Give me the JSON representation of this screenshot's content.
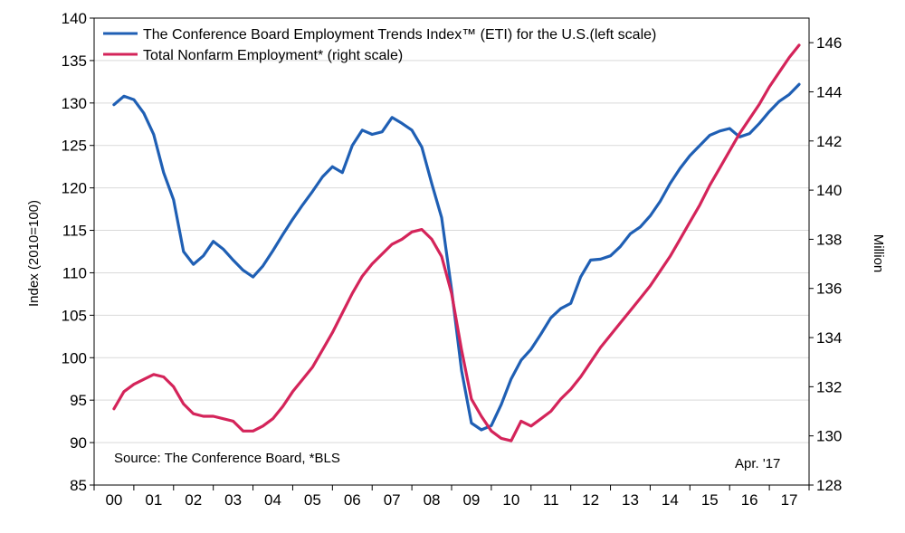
{
  "chart_data": {
    "type": "line",
    "legend": {
      "eti_label": "The Conference Board Employment Trends Index™ (ETI) for the U.S.(left scale)",
      "nfp_label": "Total Nonfarm Employment* (right scale)",
      "placement": "top-left"
    },
    "source_note": "Source: The Conference Board, *BLS",
    "date_note": "Apr. '17",
    "ylabel_left": "Index (2010=100)",
    "ylabel_right": "Million",
    "ylim_left": [
      85,
      140
    ],
    "ylim_right": [
      128,
      147
    ],
    "y_ticks_left": [
      85,
      90,
      95,
      100,
      105,
      110,
      115,
      120,
      125,
      130,
      135,
      140
    ],
    "y_ticks_right": [
      128,
      130,
      132,
      134,
      136,
      138,
      140,
      142,
      144,
      146
    ],
    "x_ticks": [
      "00",
      "01",
      "02",
      "03",
      "04",
      "05",
      "06",
      "07",
      "08",
      "09",
      "10",
      "11",
      "12",
      "13",
      "14",
      "15",
      "16",
      "17"
    ],
    "grid": "horizontal",
    "colors": {
      "eti": "#1f5fb4",
      "nfp": "#d4245a"
    },
    "series": [
      {
        "name": "The Conference Board Employment Trends Index™ (ETI) for the U.S.(left scale)",
        "axis": "left",
        "color": "#1f5fb4",
        "points": [
          [
            2000.0,
            129.8
          ],
          [
            2000.25,
            130.8
          ],
          [
            2000.5,
            130.4
          ],
          [
            2000.75,
            128.8
          ],
          [
            2001.0,
            126.3
          ],
          [
            2001.25,
            121.8
          ],
          [
            2001.5,
            118.6
          ],
          [
            2001.75,
            112.5
          ],
          [
            2002.0,
            111.0
          ],
          [
            2002.25,
            112.0
          ],
          [
            2002.5,
            113.7
          ],
          [
            2002.75,
            112.8
          ],
          [
            2003.0,
            111.5
          ],
          [
            2003.25,
            110.3
          ],
          [
            2003.5,
            109.5
          ],
          [
            2003.75,
            110.8
          ],
          [
            2004.0,
            112.6
          ],
          [
            2004.25,
            114.5
          ],
          [
            2004.5,
            116.3
          ],
          [
            2004.75,
            118.0
          ],
          [
            2005.0,
            119.6
          ],
          [
            2005.25,
            121.3
          ],
          [
            2005.5,
            122.5
          ],
          [
            2005.75,
            121.8
          ],
          [
            2006.0,
            125.0
          ],
          [
            2006.25,
            126.8
          ],
          [
            2006.5,
            126.3
          ],
          [
            2006.75,
            126.6
          ],
          [
            2007.0,
            128.3
          ],
          [
            2007.25,
            127.6
          ],
          [
            2007.5,
            126.8
          ],
          [
            2007.75,
            124.8
          ],
          [
            2008.0,
            120.5
          ],
          [
            2008.25,
            116.5
          ],
          [
            2008.5,
            108.0
          ],
          [
            2008.75,
            98.5
          ],
          [
            2009.0,
            92.3
          ],
          [
            2009.25,
            91.5
          ],
          [
            2009.5,
            92.0
          ],
          [
            2009.75,
            94.5
          ],
          [
            2010.0,
            97.5
          ],
          [
            2010.25,
            99.7
          ],
          [
            2010.5,
            101.0
          ],
          [
            2010.75,
            102.8
          ],
          [
            2011.0,
            104.7
          ],
          [
            2011.25,
            105.8
          ],
          [
            2011.5,
            106.4
          ],
          [
            2011.75,
            109.5
          ],
          [
            2012.0,
            111.5
          ],
          [
            2012.25,
            111.6
          ],
          [
            2012.5,
            112.0
          ],
          [
            2012.75,
            113.1
          ],
          [
            2013.0,
            114.6
          ],
          [
            2013.25,
            115.4
          ],
          [
            2013.5,
            116.7
          ],
          [
            2013.75,
            118.4
          ],
          [
            2014.0,
            120.5
          ],
          [
            2014.25,
            122.3
          ],
          [
            2014.5,
            123.8
          ],
          [
            2014.75,
            125.0
          ],
          [
            2015.0,
            126.2
          ],
          [
            2015.25,
            126.7
          ],
          [
            2015.5,
            127.0
          ],
          [
            2015.75,
            126.0
          ],
          [
            2016.0,
            126.4
          ],
          [
            2016.25,
            127.6
          ],
          [
            2016.5,
            129.0
          ],
          [
            2016.75,
            130.2
          ],
          [
            2017.0,
            131.0
          ],
          [
            2017.25,
            132.2
          ]
        ]
      },
      {
        "name": "Total Nonfarm Employment* (right scale)",
        "axis": "right",
        "color": "#d4245a",
        "points": [
          [
            2000.0,
            131.1
          ],
          [
            2000.25,
            131.8
          ],
          [
            2000.5,
            132.1
          ],
          [
            2000.75,
            132.3
          ],
          [
            2001.0,
            132.5
          ],
          [
            2001.25,
            132.4
          ],
          [
            2001.5,
            132.0
          ],
          [
            2001.75,
            131.3
          ],
          [
            2002.0,
            130.9
          ],
          [
            2002.25,
            130.8
          ],
          [
            2002.5,
            130.8
          ],
          [
            2002.75,
            130.7
          ],
          [
            2003.0,
            130.6
          ],
          [
            2003.25,
            130.2
          ],
          [
            2003.5,
            130.2
          ],
          [
            2003.75,
            130.4
          ],
          [
            2004.0,
            130.7
          ],
          [
            2004.25,
            131.2
          ],
          [
            2004.5,
            131.8
          ],
          [
            2004.75,
            132.3
          ],
          [
            2005.0,
            132.8
          ],
          [
            2005.25,
            133.5
          ],
          [
            2005.5,
            134.2
          ],
          [
            2005.75,
            135.0
          ],
          [
            2006.0,
            135.8
          ],
          [
            2006.25,
            136.5
          ],
          [
            2006.5,
            137.0
          ],
          [
            2006.75,
            137.4
          ],
          [
            2007.0,
            137.8
          ],
          [
            2007.25,
            138.0
          ],
          [
            2007.5,
            138.3
          ],
          [
            2007.75,
            138.4
          ],
          [
            2008.0,
            138.0
          ],
          [
            2008.25,
            137.3
          ],
          [
            2008.5,
            135.8
          ],
          [
            2008.75,
            133.5
          ],
          [
            2009.0,
            131.5
          ],
          [
            2009.25,
            130.8
          ],
          [
            2009.5,
            130.2
          ],
          [
            2009.75,
            129.9
          ],
          [
            2010.0,
            129.8
          ],
          [
            2010.25,
            130.6
          ],
          [
            2010.5,
            130.4
          ],
          [
            2010.75,
            130.7
          ],
          [
            2011.0,
            131.0
          ],
          [
            2011.25,
            131.5
          ],
          [
            2011.5,
            131.9
          ],
          [
            2011.75,
            132.4
          ],
          [
            2012.0,
            133.0
          ],
          [
            2012.25,
            133.6
          ],
          [
            2012.5,
            134.1
          ],
          [
            2012.75,
            134.6
          ],
          [
            2013.0,
            135.1
          ],
          [
            2013.25,
            135.6
          ],
          [
            2013.5,
            136.1
          ],
          [
            2013.75,
            136.7
          ],
          [
            2014.0,
            137.3
          ],
          [
            2014.25,
            138.0
          ],
          [
            2014.5,
            138.7
          ],
          [
            2014.75,
            139.4
          ],
          [
            2015.0,
            140.2
          ],
          [
            2015.25,
            140.9
          ],
          [
            2015.5,
            141.6
          ],
          [
            2015.75,
            142.3
          ],
          [
            2016.0,
            142.9
          ],
          [
            2016.25,
            143.5
          ],
          [
            2016.5,
            144.2
          ],
          [
            2016.75,
            144.8
          ],
          [
            2017.0,
            145.4
          ],
          [
            2017.25,
            145.9
          ]
        ]
      }
    ]
  }
}
